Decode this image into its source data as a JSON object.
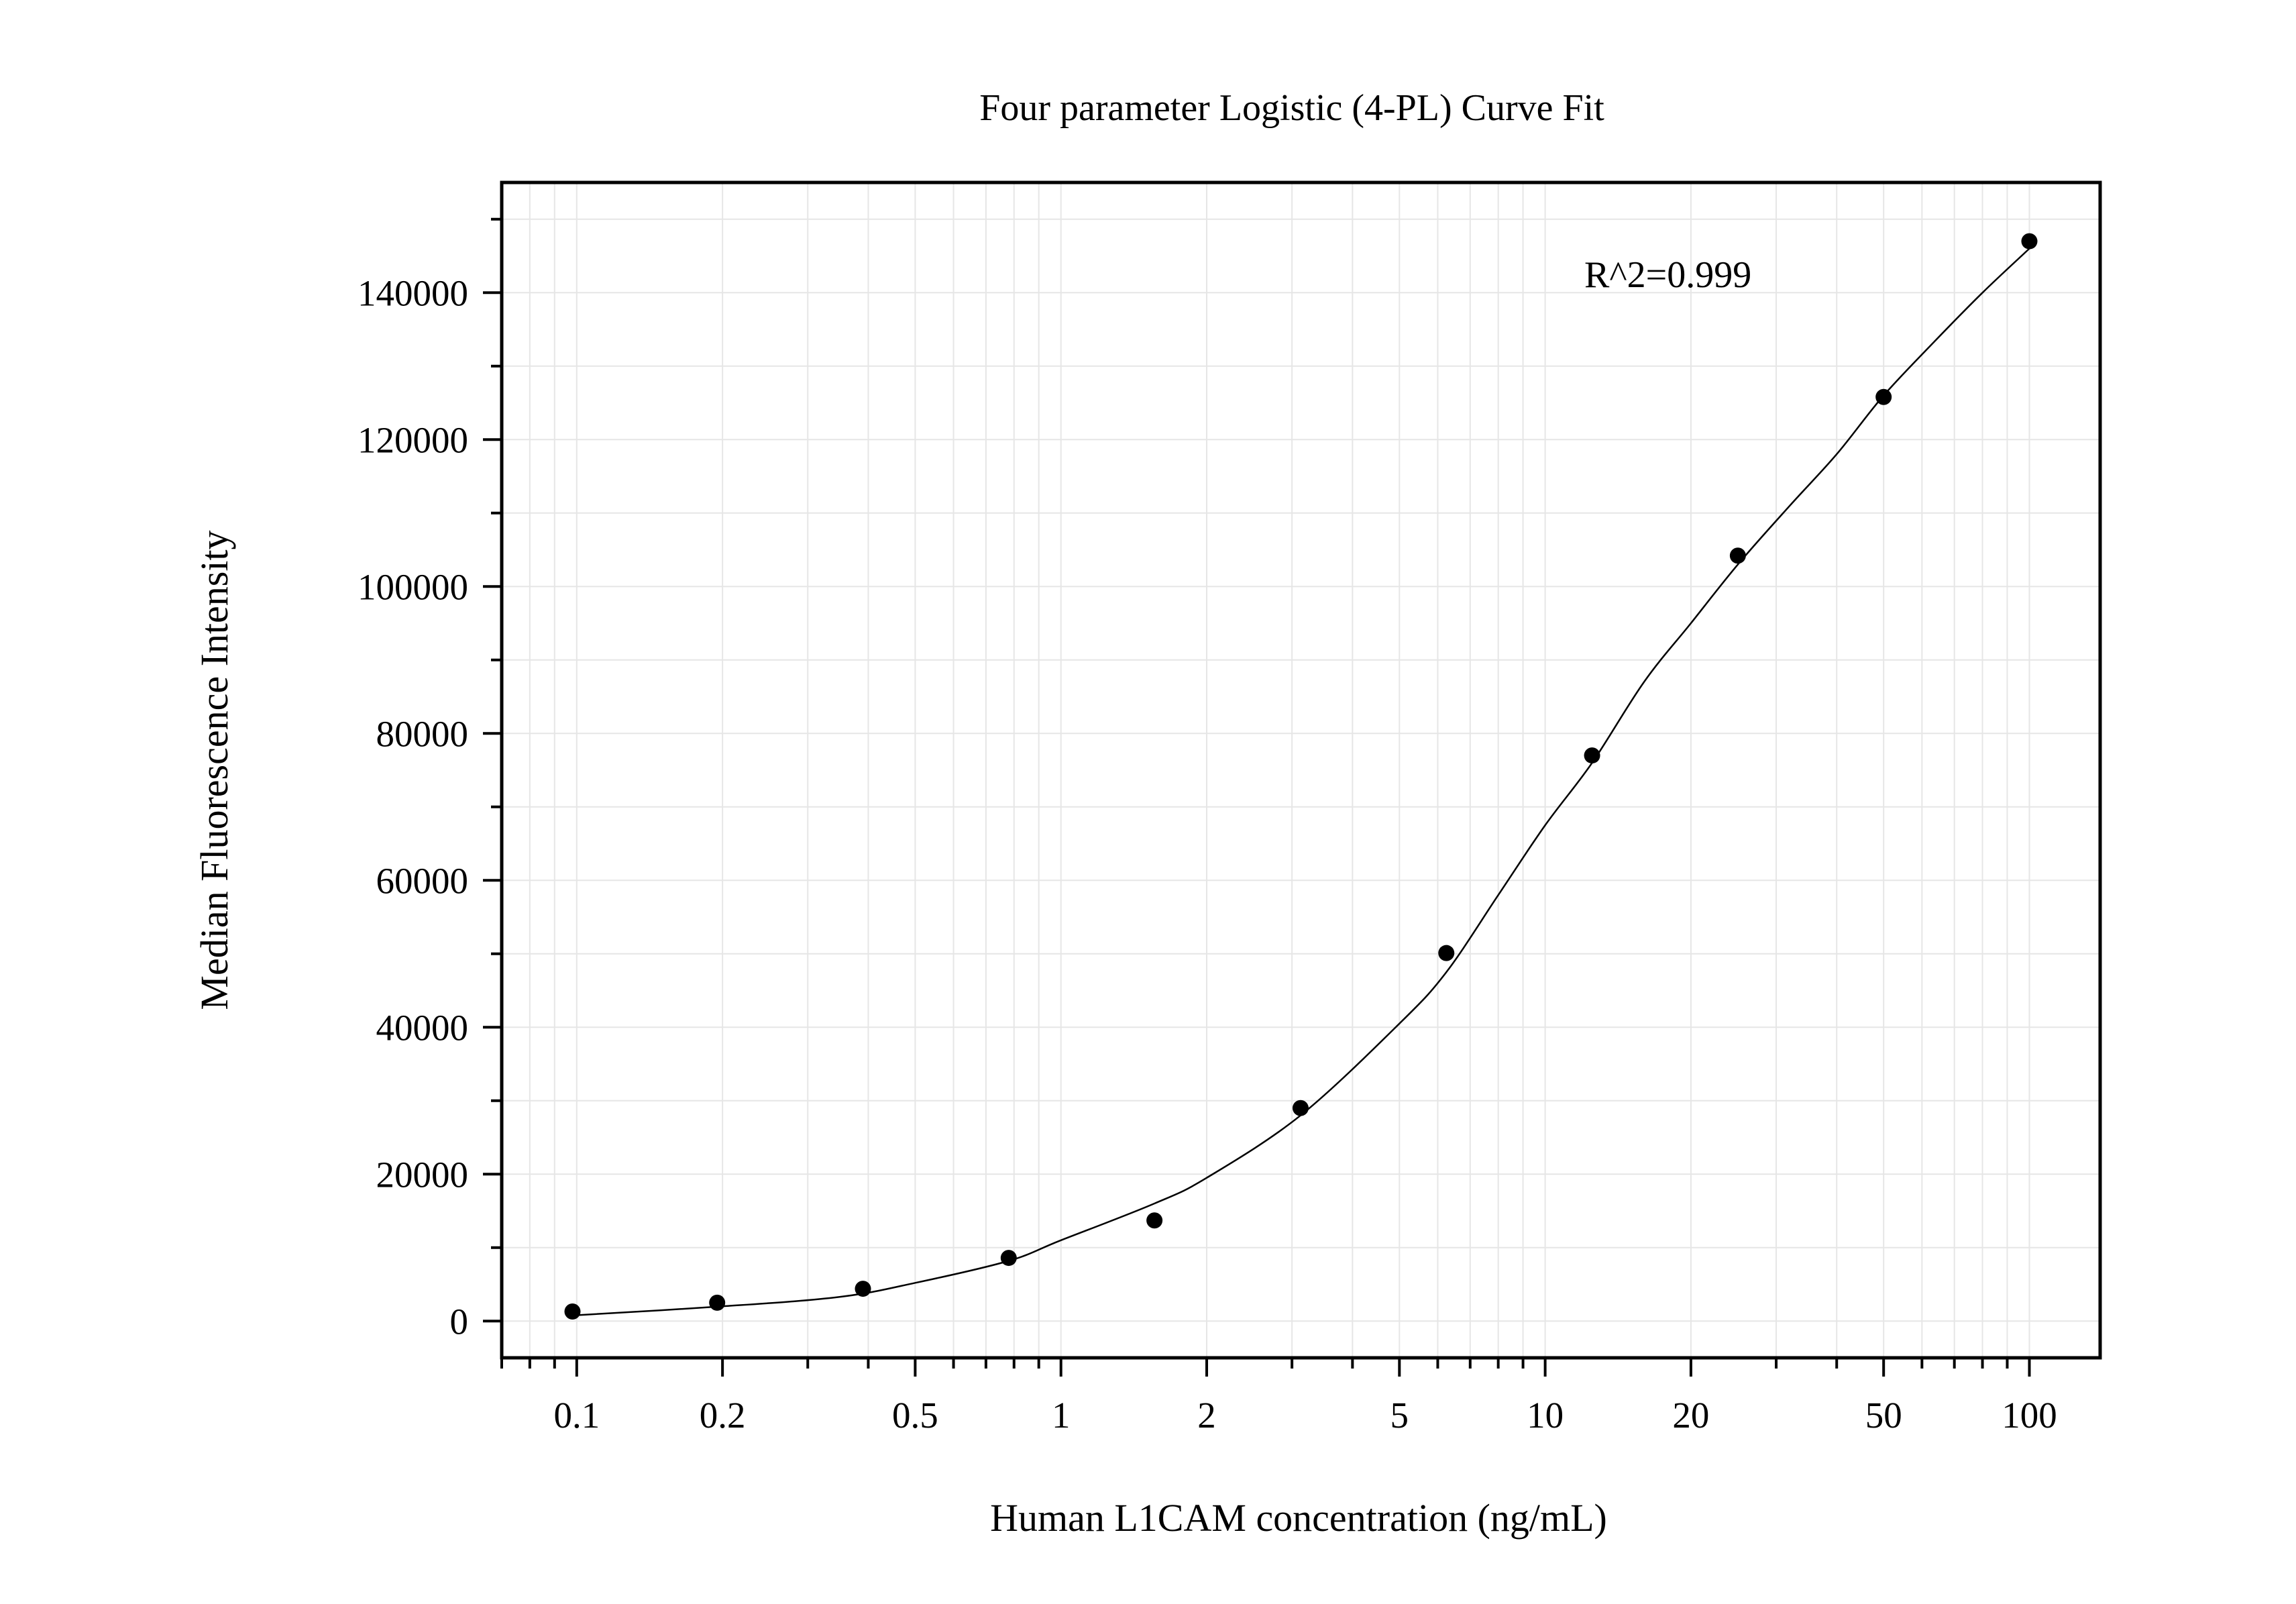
{
  "chart_data": {
    "type": "scatter",
    "title": "Four parameter Logistic (4-PL) Curve Fit",
    "xlabel": "Human L1CAM concentration (ng/mL)",
    "ylabel": "Median Fluorescence Intensity",
    "x_scale": "log",
    "xlim": [
      0.07,
      140
    ],
    "ylim": [
      -5000,
      155000
    ],
    "x_ticks": [
      0.1,
      0.2,
      0.5,
      1,
      2,
      5,
      10,
      20,
      50,
      100
    ],
    "x_tick_labels": [
      "0.1",
      "0.2",
      "0.5",
      "1",
      "2",
      "5",
      "10",
      "20",
      "50",
      "100"
    ],
    "y_ticks": [
      0,
      20000,
      40000,
      60000,
      80000,
      100000,
      120000,
      140000
    ],
    "y_tick_labels": [
      "0",
      "20000",
      "40000",
      "60000",
      "80000",
      "100000",
      "120000",
      "140000"
    ],
    "grid": true,
    "legend": "none",
    "annotation": "R^2=0.999",
    "series": [
      {
        "type": "scatter",
        "x": [
          0.098,
          0.195,
          0.39,
          0.78,
          1.56,
          3.125,
          6.25,
          12.5,
          25,
          50,
          100
        ],
        "y": [
          1300,
          2500,
          4400,
          8600,
          13700,
          29000,
          50100,
          77000,
          104200,
          125800,
          147000
        ]
      },
      {
        "type": "line",
        "fit": "4PL",
        "x": [
          0.1,
          0.2,
          0.35,
          0.5,
          0.78,
          1,
          1.56,
          2,
          3.125,
          5,
          6.25,
          8,
          10,
          12.5,
          16,
          20,
          25,
          32,
          40,
          50,
          64,
          80,
          100
        ],
        "y": [
          800,
          2000,
          3300,
          5200,
          8200,
          11000,
          16000,
          19500,
          28000,
          40500,
          47500,
          58000,
          67500,
          76000,
          87000,
          95000,
          103000,
          111000,
          118000,
          126000,
          133500,
          140000,
          146000
        ]
      }
    ],
    "colors": {
      "marker": "#000000",
      "line": "#000000",
      "grid": "#e6e6e6",
      "frame": "#000000"
    }
  }
}
